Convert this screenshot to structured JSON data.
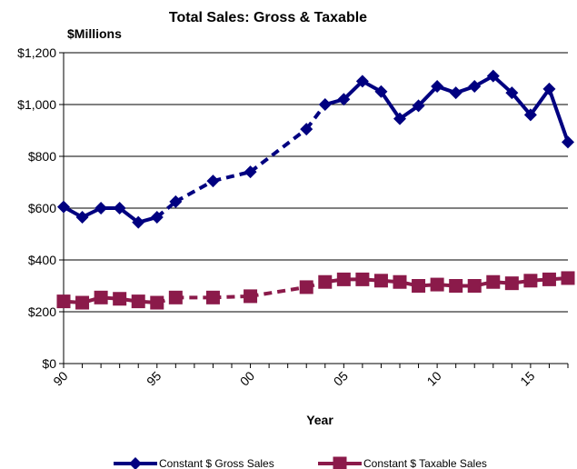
{
  "chart_data": {
    "type": "line",
    "title": "Total Sales: Gross & Taxable",
    "ylabel": "$Millions",
    "xlabel": "Year",
    "ylim": [
      0,
      1200
    ],
    "y_ticks": [
      0,
      200,
      400,
      600,
      800,
      1000,
      1200
    ],
    "y_tick_labels": [
      "$0",
      "$200",
      "$400",
      "$600",
      "$800",
      "$1,000",
      "$1,200"
    ],
    "xlim": [
      1990,
      2017
    ],
    "x_ticks": [
      1990,
      1995,
      2000,
      2005,
      2010,
      2015
    ],
    "x_tick_labels": [
      "90",
      "95",
      "00",
      "05",
      "10",
      "15"
    ],
    "grid": "horizontal",
    "legend_position": "bottom",
    "series": [
      {
        "name": "Constant $ Gross Sales",
        "color": "#000080",
        "marker": "diamond",
        "x": [
          1990,
          1991,
          1992,
          1993,
          1994,
          1995,
          1996,
          1998,
          2000,
          2003,
          2004,
          2005,
          2006,
          2007,
          2008,
          2009,
          2010,
          2011,
          2012,
          2013,
          2014,
          2015,
          2016,
          2017
        ],
        "values": [
          605,
          565,
          600,
          600,
          545,
          565,
          625,
          705,
          740,
          905,
          1000,
          1020,
          1090,
          1050,
          945,
          995,
          1070,
          1045,
          1070,
          1110,
          1045,
          960,
          1060,
          855
        ],
        "dashed_segments": [
          [
            1995,
            2004
          ]
        ]
      },
      {
        "name": "Constant $ Taxable Sales",
        "color": "#8B1A4A",
        "marker": "square",
        "x": [
          1990,
          1991,
          1992,
          1993,
          1994,
          1995,
          1996,
          1998,
          2000,
          2003,
          2004,
          2005,
          2006,
          2007,
          2008,
          2009,
          2010,
          2011,
          2012,
          2013,
          2014,
          2015,
          2016,
          2017
        ],
        "values": [
          240,
          235,
          255,
          250,
          240,
          235,
          255,
          255,
          260,
          295,
          315,
          325,
          325,
          320,
          315,
          300,
          305,
          300,
          300,
          315,
          310,
          320,
          325,
          330
        ],
        "dashed_segments": [
          [
            1995,
            2004
          ]
        ]
      }
    ]
  }
}
